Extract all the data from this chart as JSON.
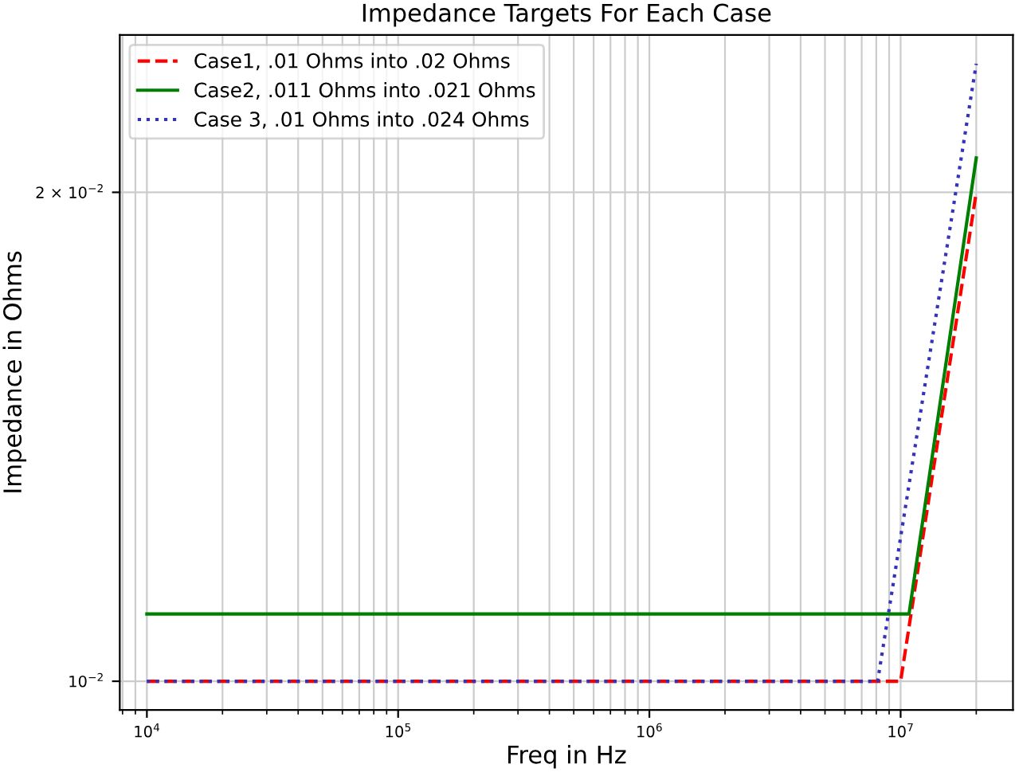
{
  "chart_data": {
    "type": "line",
    "title": "Impedance Targets For Each Case",
    "xlabel": "Freq in Hz",
    "ylabel": "Impedance in Ohms",
    "log": "xy",
    "grid": true,
    "legend": "top left",
    "xlim": [
      7800,
      28000000
    ],
    "ylim": [
      0.0096,
      0.025
    ],
    "xticks": [
      {
        "value": 10000,
        "label": "10$^{4}$"
      },
      {
        "value": 100000,
        "label": "10$^{5}$"
      },
      {
        "value": 1000000,
        "label": "10$^{6}$"
      },
      {
        "value": 10000000,
        "label": "10$^{7}$"
      }
    ],
    "yticks": [
      {
        "value": 0.01,
        "label": "10$^{−2}$"
      },
      {
        "value": 0.02,
        "label": "2 × 10$^{−2}$"
      }
    ],
    "series": [
      {
        "name": "Case1, .01 Ohms into .02 Ohms",
        "color": "#ff0000",
        "line_style": "dashed",
        "x": [
          10000,
          10000000,
          20000000
        ],
        "values": [
          0.01,
          0.01,
          0.02
        ]
      },
      {
        "name": "Case2, .011 Ohms into .021 Ohms",
        "color": "#008000",
        "line_style": "solid",
        "x": [
          10000,
          10800000,
          20000000
        ],
        "values": [
          0.011,
          0.011,
          0.021
        ]
      },
      {
        "name": "Case 3, .01 Ohms into .024 Ohms",
        "color": "#3333bb",
        "line_style": "dotted",
        "x": [
          10000,
          8100000,
          20000000
        ],
        "values": [
          0.01,
          0.01,
          0.024
        ]
      }
    ]
  }
}
